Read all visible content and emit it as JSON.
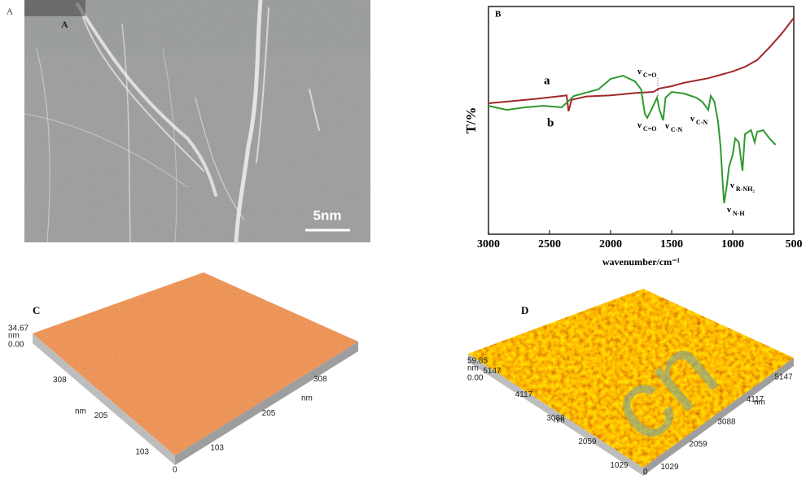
{
  "panels": {
    "a": {
      "label": "A",
      "inner_label": "A",
      "scale_bar": "5nm"
    },
    "c": {
      "label": "C",
      "z_max": "34.67",
      "z_unit": "nm",
      "z_min": "0.00",
      "left_ticks": [
        "308",
        "205",
        "103"
      ],
      "left_unit": "nm",
      "origin": "0",
      "right_ticks": [
        "103",
        "205",
        "308"
      ],
      "right_unit": "nm"
    },
    "d": {
      "label": "D",
      "z_max": "59.85",
      "z_unit": "nm",
      "z_min": "0.00",
      "left_ticks": [
        "5147",
        "4117",
        "3088",
        "2059",
        "1029"
      ],
      "left_unit": "nm",
      "origin": "0",
      "right_ticks": [
        "1029",
        "2059",
        "3088",
        "4117",
        "5147"
      ],
      "right_unit": "nm",
      "watermark": "cn"
    }
  },
  "chart_data": {
    "type": "line",
    "label": "B",
    "xlabel": "wavenumber/cm⁻¹",
    "ylabel": "T/%",
    "xlim": [
      3000,
      500
    ],
    "xticks": [
      3000,
      2500,
      2000,
      1500,
      1000,
      500
    ],
    "ylim": [
      0,
      100
    ],
    "series": [
      {
        "name": "a",
        "color": "#a0282a",
        "x": [
          3000,
          2800,
          2600,
          2400,
          2360,
          2345,
          2320,
          2200,
          2000,
          1800,
          1650,
          1600,
          1500,
          1400,
          1300,
          1200,
          1100,
          1000,
          900,
          800,
          700,
          600,
          500
        ],
        "values": [
          57.5,
          58.5,
          59.5,
          60.7,
          61,
          54,
          59,
          60.5,
          61,
          62,
          62.5,
          64,
          65,
          66.5,
          67.5,
          68.5,
          70,
          71.5,
          73.5,
          76.5,
          82,
          88,
          95
        ]
      },
      {
        "name": "b",
        "color": "#2e9a2e",
        "x": [
          3000,
          2850,
          2700,
          2550,
          2400,
          2300,
          2100,
          2000,
          1900,
          1800,
          1750,
          1720,
          1700,
          1650,
          1620,
          1600,
          1570,
          1550,
          1500,
          1400,
          1300,
          1250,
          1200,
          1180,
          1150,
          1120,
          1100,
          1080,
          1070,
          1050,
          1030,
          1000,
          980,
          950,
          920,
          900,
          850,
          820,
          800,
          750,
          700,
          650
        ],
        "values": [
          56.4,
          54.6,
          55.7,
          56.4,
          55.7,
          60.7,
          63.6,
          68.2,
          69.6,
          67.1,
          63.6,
          52.9,
          51.1,
          56.4,
          60,
          54.6,
          50,
          60,
          62.5,
          61.8,
          60,
          58.2,
          54.6,
          60.7,
          58.2,
          49.3,
          38.6,
          20.7,
          13.6,
          20.7,
          29.6,
          35,
          42.1,
          40.4,
          27.9,
          43.9,
          45.7,
          40.4,
          45,
          45.7,
          42.1,
          39.3
        ]
      }
    ],
    "annotations": [
      {
        "symbol": "ν",
        "sub": "C=O"
      },
      {
        "symbol": "ν",
        "sub": "C=O"
      },
      {
        "symbol": "ν",
        "sub": "C-N"
      },
      {
        "symbol": "ν",
        "sub": "C-N"
      },
      {
        "symbol": "ν",
        "sub": "R-NH₂"
      },
      {
        "symbol": "ν",
        "sub": "N-H"
      }
    ]
  }
}
